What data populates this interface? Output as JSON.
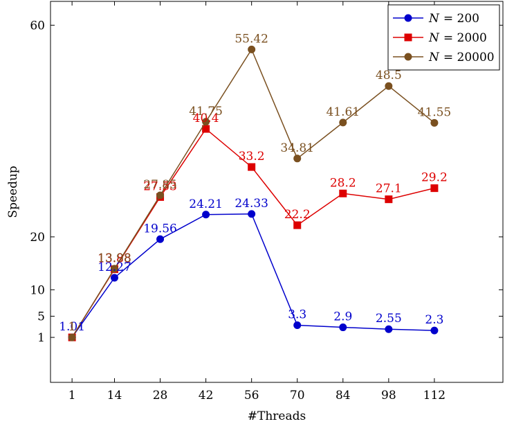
{
  "chart_data": {
    "type": "line",
    "xlabel": "#Threads",
    "ylabel": "Speedup",
    "categories": [
      "1",
      "14",
      "28",
      "42",
      "56",
      "70",
      "84",
      "98",
      "112"
    ],
    "yticks": [
      1,
      5,
      10,
      20,
      60
    ],
    "ylim": [
      -7.5,
      64.5
    ],
    "xlim": [
      -5.6,
      133.0
    ],
    "grid": false,
    "legend_position": "top-right",
    "series": [
      {
        "name": "N = 200",
        "legend_var": "N",
        "legend_value": "= 200",
        "color": "#0000cc",
        "marker": "circle",
        "x": [
          1,
          14,
          28,
          42,
          56,
          70,
          84,
          98,
          112
        ],
        "y": [
          1.01,
          12.27,
          19.56,
          24.21,
          24.33,
          3.3,
          2.9,
          2.55,
          2.3
        ],
        "labels": [
          "1.01",
          "12.27",
          "19.56",
          "24.21",
          "24.33",
          "3.3",
          "2.9",
          "2.55",
          "2.3"
        ]
      },
      {
        "name": "N = 2000",
        "legend_var": "N",
        "legend_value": "= 2000",
        "color": "#dd0000",
        "marker": "square",
        "x": [
          1,
          14,
          28,
          42,
          56,
          70,
          84,
          98,
          112
        ],
        "y": [
          1.0,
          13.88,
          27.53,
          40.4,
          33.2,
          22.2,
          28.2,
          27.1,
          29.2
        ],
        "labels": [
          "1",
          "13.88",
          "27.53",
          "40.4",
          "33.2",
          "22.2",
          "28.2",
          "27.1",
          "29.2"
        ]
      },
      {
        "name": "N = 20000",
        "legend_var": "N",
        "legend_value": "= 20000",
        "color": "#7a5020",
        "marker": "circle",
        "x": [
          1,
          14,
          28,
          42,
          56,
          70,
          84,
          98,
          112
        ],
        "y": [
          1.0,
          13.98,
          27.85,
          41.75,
          55.42,
          34.81,
          41.61,
          48.5,
          41.55
        ],
        "labels": [
          "1",
          "13.98",
          "27.85",
          "41.75",
          "55.42",
          "34.81",
          "41.61",
          "48.5",
          "41.55"
        ]
      }
    ]
  }
}
